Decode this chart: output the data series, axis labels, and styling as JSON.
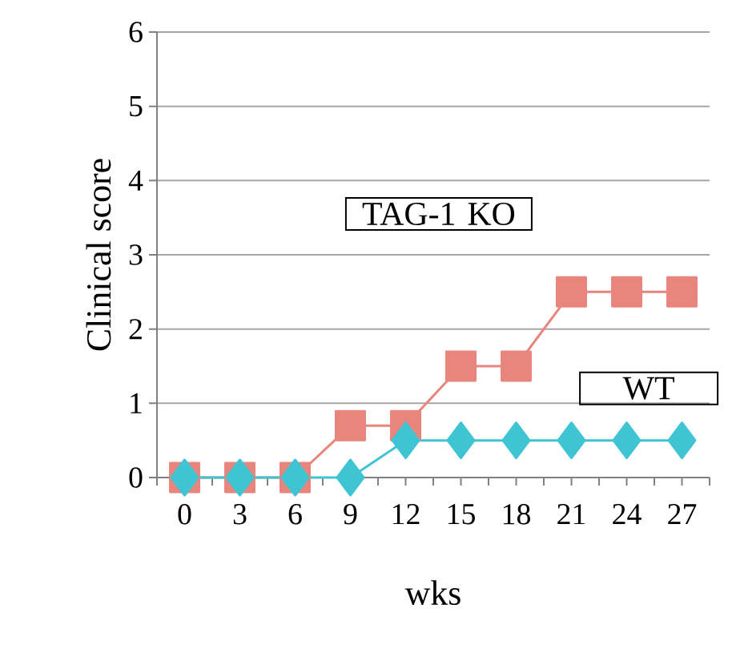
{
  "chart_data": {
    "type": "line",
    "xlabel": "wks",
    "ylabel": "Clinical  score",
    "categories": [
      "0",
      "3",
      "6",
      "9",
      "12",
      "15",
      "18",
      "21",
      "24",
      "27"
    ],
    "series": [
      {
        "name": "TAG-1 KO",
        "color": "#e8857c",
        "marker": "square",
        "values": [
          0,
          0,
          0,
          0.7,
          0.7,
          1.5,
          1.5,
          2.5,
          2.5,
          2.5
        ]
      },
      {
        "name": "WT",
        "color": "#3fc4d4",
        "marker": "diamond",
        "values": [
          0,
          0,
          0,
          0,
          0.5,
          0.5,
          0.5,
          0.5,
          0.5,
          0.5
        ]
      }
    ],
    "ylim": [
      0,
      6
    ],
    "yticks": [
      0,
      1,
      2,
      3,
      4,
      5,
      6
    ],
    "grid": "y",
    "line_style": "solid"
  }
}
